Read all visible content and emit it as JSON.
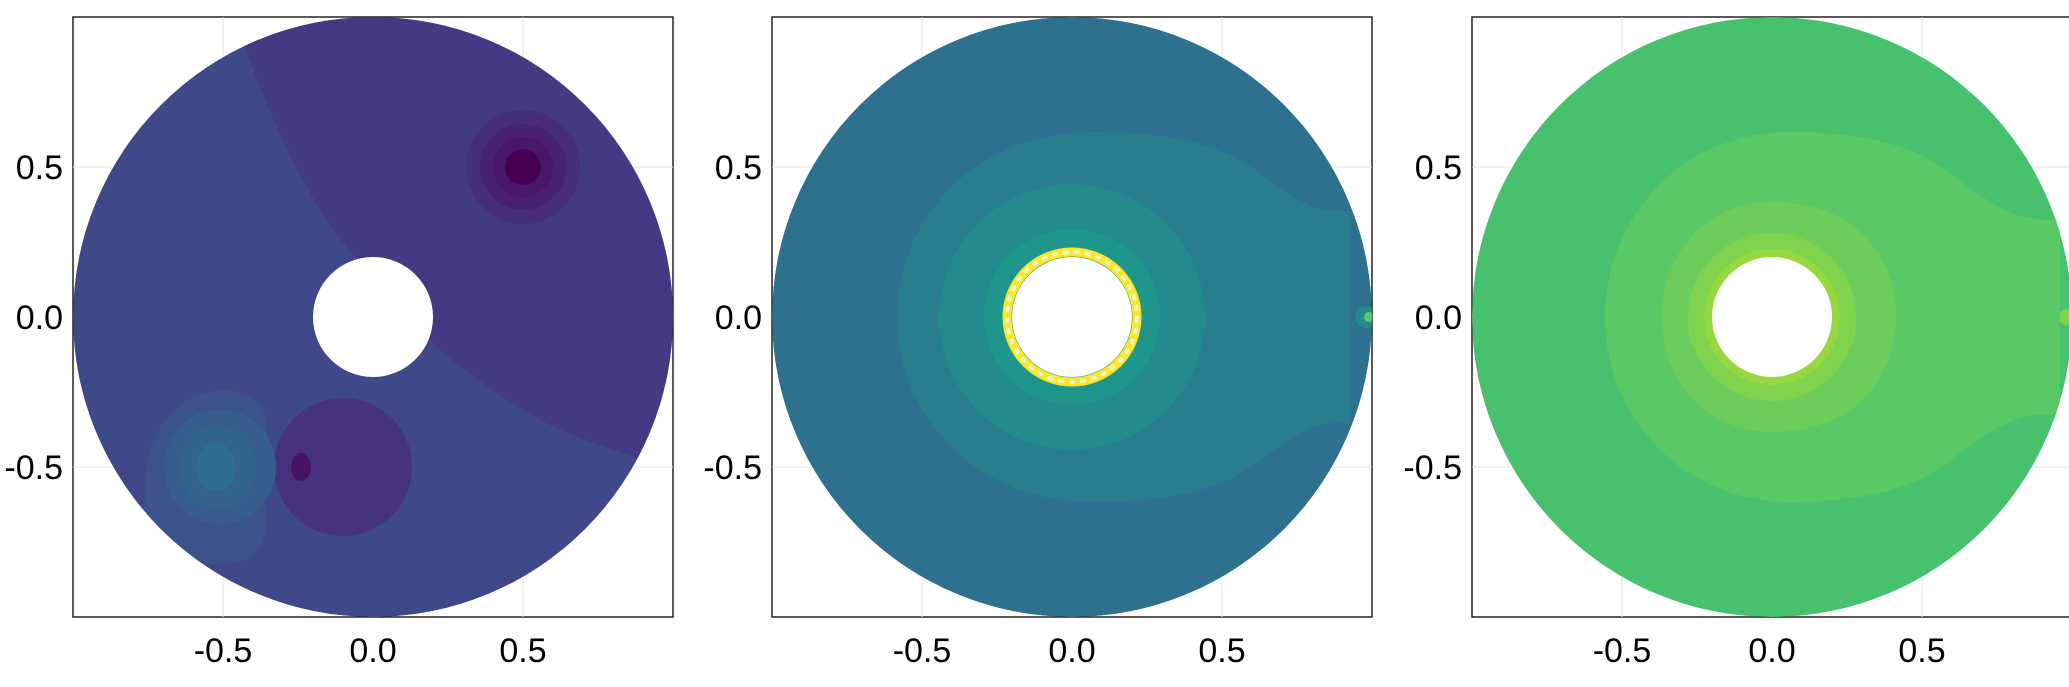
{
  "chart_data": [
    {
      "type": "heatmap",
      "title": "",
      "xlabel": "",
      "ylabel": "",
      "xlim": [
        -1,
        1
      ],
      "ylim": [
        -1,
        1
      ],
      "grid": true,
      "x_ticks": [
        "-0.5",
        "0.0",
        "0.5"
      ],
      "y_ticks": [
        "0.5",
        "0.0",
        "-0.5"
      ],
      "x_tick_values": [
        -0.5,
        0.0,
        0.5
      ],
      "y_tick_values": [
        0.5,
        0.0,
        -0.5
      ],
      "domain": {
        "outer_radius": 1.0,
        "hole_center": [
          0,
          0
        ],
        "hole_radius": 0.2
      },
      "colors": {
        "background": "#3f4889",
        "upper_right_region": "#443983",
        "well_ring1": "#472e7c",
        "well_ring2": "#482173",
        "well_ring3": "#481769",
        "well_core": "#440154",
        "lower_disc": "#46327e",
        "lower_disc_spot": "#471365",
        "source_ring1": "#3b528b",
        "source_ring2": "#365d8d",
        "source_ring3": "#33638d",
        "source_core": "#2e6e8e"
      },
      "features": [
        {
          "kind": "sink",
          "center": [
            0.5,
            0.5
          ],
          "radii": [
            0.19,
            0.145,
            0.1,
            0.06
          ]
        },
        {
          "kind": "source",
          "center": [
            -0.5,
            -0.5
          ],
          "radii": [
            0.25,
            0.19,
            0.13,
            0.075
          ]
        },
        {
          "kind": "disc",
          "center": [
            -0.1,
            -0.5
          ],
          "radius": 0.23
        }
      ]
    },
    {
      "type": "heatmap",
      "title": "",
      "xlabel": "",
      "ylabel": "",
      "xlim": [
        -1,
        1
      ],
      "ylim": [
        -1,
        1
      ],
      "grid": true,
      "x_ticks": [
        "-0.5",
        "0.0",
        "0.5"
      ],
      "y_ticks": [
        "0.5",
        "0.0",
        "-0.5"
      ],
      "x_tick_values": [
        -0.5,
        0.0,
        0.5
      ],
      "y_tick_values": [
        0.5,
        0.0,
        -0.5
      ],
      "domain": {
        "outer_radius": 1.0,
        "hole_center": [
          0,
          0
        ],
        "hole_radius": 0.2
      },
      "colors": {
        "band1": "#2d718e",
        "band2": "#287d8e",
        "band3": "#238a8d",
        "band4": "#1f968b",
        "inner_edge": "#fde725",
        "inner_edge_fill": "#e8f5c8",
        "edge_spot": "#5ec962"
      },
      "contour_levels_x_extent": [
        0.58,
        0.48,
        0.24
      ],
      "contour_levels_y_extent": [
        0.62,
        0.43,
        0.28
      ]
    },
    {
      "type": "heatmap",
      "title": "",
      "xlabel": "",
      "ylabel": "",
      "xlim": [
        -1,
        1
      ],
      "ylim": [
        -1,
        1
      ],
      "grid": true,
      "x_ticks": [
        "-0.5",
        "0.0",
        "0.5"
      ],
      "y_ticks": [
        "0.5",
        "0.0",
        "-0.5"
      ],
      "x_tick_values": [
        -0.5,
        0.0,
        0.5
      ],
      "y_tick_values": [
        0.5,
        0.0,
        -0.5
      ],
      "domain": {
        "outer_radius": 1.0,
        "hole_center": [
          0,
          0
        ],
        "hole_radius": 0.2
      },
      "colors": {
        "band1": "#48c16e",
        "band2": "#5ac864",
        "band3": "#6ccd5a",
        "band4": "#80d34d",
        "band5": "#95d840",
        "edge_spot": "#80d34d"
      },
      "contour_levels_x_extent": [
        0.58,
        0.4,
        0.26
      ],
      "contour_levels_y_extent": [
        0.6,
        0.38,
        0.28
      ]
    }
  ]
}
